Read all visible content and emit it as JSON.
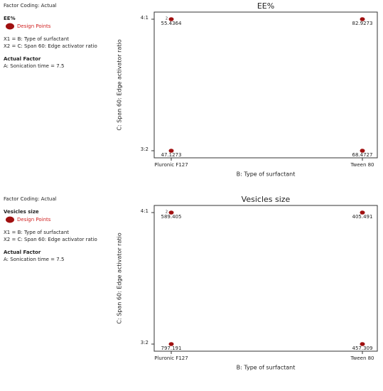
{
  "chart_data": [
    {
      "type": "scatter",
      "title": "EE%",
      "panel": {
        "coding": "Factor Coding: Actual",
        "response": "EE%",
        "legend": "Design Points",
        "x1": "X1 = B: Type of surfactant",
        "x2": "X2 = C: Span 60: Edge activator ratio",
        "factor_heading": "Actual Factor",
        "factor": "A: Sonication time = 7.5"
      },
      "x_label": "B: Type of surfactant",
      "y_label": "C: Span 60: Edge activator ratio",
      "x_categories": [
        "Pluronic F127",
        "Tween 80"
      ],
      "y_categories": [
        "3:2",
        "4:1"
      ],
      "color": "#a01010",
      "points": [
        {
          "x": "Pluronic F127",
          "y": "4:1",
          "value": 55.4364,
          "count": 2
        },
        {
          "x": "Tween 80",
          "y": "4:1",
          "value": 82.9273
        },
        {
          "x": "Pluronic F127",
          "y": "3:2",
          "value": 47.1273
        },
        {
          "x": "Tween 80",
          "y": "3:2",
          "value": 68.4727
        }
      ]
    },
    {
      "type": "scatter",
      "title": "Vesicles size",
      "panel": {
        "coding": "Factor Coding: Actual",
        "response": "Vesicles size",
        "legend": "Design Points",
        "x1": "X1 = B: Type of surfactant",
        "x2": "X2 = C: Span 60: Edge activator ratio",
        "factor_heading": "Actual Factor",
        "factor": "A: Sonication time = 7.5"
      },
      "x_label": "B: Type of surfactant",
      "y_label": "C: Span 60: Edge activator ratio",
      "x_categories": [
        "Pluronic F127",
        "Tween 80"
      ],
      "y_categories": [
        "3:2",
        "4:1"
      ],
      "color": "#a01010",
      "points": [
        {
          "x": "Pluronic F127",
          "y": "4:1",
          "value": 589.405,
          "count": 2
        },
        {
          "x": "Tween 80",
          "y": "4:1",
          "value": 405.491
        },
        {
          "x": "Pluronic F127",
          "y": "3:2",
          "value": 797.191
        },
        {
          "x": "Tween 80",
          "y": "3:2",
          "value": 457.309
        }
      ]
    }
  ]
}
